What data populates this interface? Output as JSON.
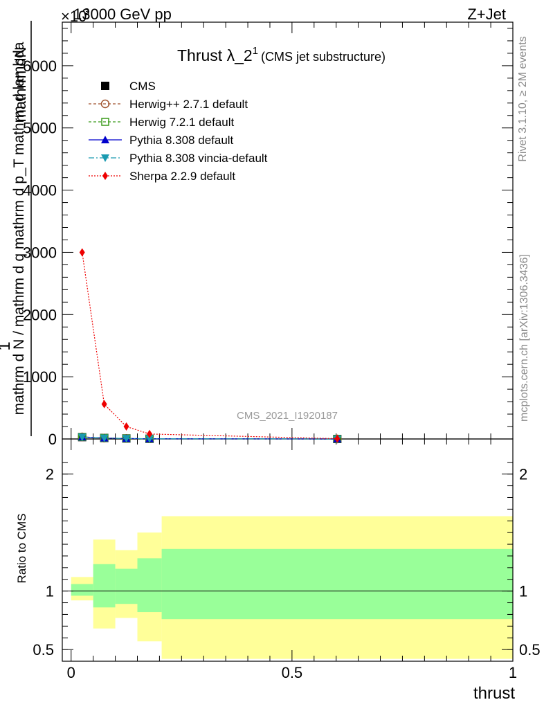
{
  "header": {
    "left": "13000 GeV pp",
    "right": "Z+Jet"
  },
  "title": {
    "main": "Thrust λ_2",
    "superscript": "1",
    "note": "(CMS jet substructure)"
  },
  "side_labels": {
    "rivet": "Rivet 3.1.10, ≥ 2M events",
    "mcplots": "mcplots.cern.ch [arXiv:1306.3436]"
  },
  "watermark": "CMS_2021_I1920187",
  "colors": {
    "band_outer": "#ffff99",
    "band_inner": "#99ff99",
    "herwigpp": "#a0522d",
    "herwig7": "#3a9a1a",
    "pythia": "#0000cc",
    "vincia": "#1a9ab0",
    "sherpa": "#ee0000"
  },
  "chart_data": [
    {
      "type": "line",
      "panel": "main",
      "y_multiplier": "×10^3",
      "ylabel_numerator": "1",
      "ylabel_numerator_line2": "mathrm dN",
      "ylabel_denominator": "mathrm d N / mathrm d q mathrm d p_T mathrm d lambda",
      "xlim": [
        -0.02,
        1.0
      ],
      "ylim": [
        0,
        6700
      ],
      "yticks": [
        0,
        1000,
        2000,
        3000,
        4000,
        5000,
        6000
      ],
      "ytick_labels": [
        "0",
        "1000",
        "2000",
        "3000",
        "4000",
        "5000",
        "6000"
      ],
      "legend_position": "top-left",
      "series": [
        {
          "name": "CMS",
          "marker": "square",
          "color": "#000000",
          "x": [
            0.025,
            0.075,
            0.125,
            0.1775,
            0.6025
          ],
          "y": [
            30,
            16,
            8,
            3,
            0.1
          ]
        },
        {
          "name": "Herwig++ 2.7.1 default",
          "marker": "circle-open",
          "color": "#a0522d",
          "x": [
            0.025,
            0.075,
            0.125,
            0.1775,
            0.6025
          ],
          "y": [
            33,
            15,
            7,
            2.5,
            0.1
          ]
        },
        {
          "name": "Herwig 7.2.1 default",
          "marker": "square-open",
          "color": "#3a9a1a",
          "x": [
            0.025,
            0.075,
            0.125,
            0.1775,
            0.6025
          ],
          "y": [
            31,
            16,
            8,
            3,
            0.1
          ]
        },
        {
          "name": "Pythia 8.308 default",
          "marker": "triangle-up",
          "color": "#0000cc",
          "x": [
            0.025,
            0.075,
            0.125,
            0.1775,
            0.6025
          ],
          "y": [
            32,
            15,
            8,
            3,
            0.1
          ]
        },
        {
          "name": "Pythia 8.308 vincia-default",
          "marker": "triangle-down",
          "color": "#1a9ab0",
          "x": [
            0.025,
            0.075,
            0.125,
            0.1775,
            0.6025
          ],
          "y": [
            30,
            15,
            8,
            3,
            0.1
          ]
        },
        {
          "name": "Sherpa 2.2.9 default",
          "marker": "diamond",
          "color": "#ee0000",
          "x": [
            0.025,
            0.075,
            0.125,
            0.1775,
            0.6025
          ],
          "y": [
            3000,
            560,
            200,
            80,
            5
          ]
        }
      ]
    },
    {
      "type": "area",
      "panel": "ratio",
      "ylabel": "Ratio to CMS",
      "xlabel": "thrust",
      "xlim": [
        -0.02,
        1.0
      ],
      "ylim": [
        0.4,
        2.3
      ],
      "yticks": [
        0.5,
        1,
        2
      ],
      "ytick_labels": [
        "0.5",
        "1",
        "2"
      ],
      "xticks": [
        0,
        0.5,
        1
      ],
      "xtick_labels": [
        "0",
        "0.5",
        "1"
      ],
      "reference_line": 1,
      "bin_edges": [
        0,
        0.05,
        0.1,
        0.15,
        0.205,
        1.0
      ],
      "band_outer_low": [
        0.92,
        0.68,
        0.77,
        0.57,
        0.42
      ],
      "band_outer_high": [
        1.12,
        1.44,
        1.35,
        1.5,
        1.64
      ],
      "band_inner_low": [
        0.96,
        0.86,
        0.89,
        0.82,
        0.76
      ],
      "band_inner_high": [
        1.06,
        1.23,
        1.19,
        1.28,
        1.36
      ]
    }
  ]
}
